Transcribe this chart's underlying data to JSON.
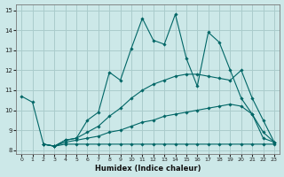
{
  "xlabel": "Humidex (Indice chaleur)",
  "bg_color": "#cce8e8",
  "grid_color": "#aacccc",
  "line_color": "#006666",
  "xlim": [
    -0.5,
    23.5
  ],
  "ylim": [
    7.8,
    15.3
  ],
  "yticks": [
    8,
    9,
    10,
    11,
    12,
    13,
    14,
    15
  ],
  "xticks": [
    0,
    1,
    2,
    3,
    4,
    5,
    6,
    7,
    8,
    9,
    10,
    11,
    12,
    13,
    14,
    15,
    16,
    17,
    18,
    19,
    20,
    21,
    22,
    23
  ],
  "lines": [
    {
      "x": [
        0,
        1,
        2,
        3,
        4,
        5,
        6,
        7,
        8,
        9,
        10,
        11,
        12,
        13,
        14,
        15,
        16,
        17,
        18,
        19,
        20,
        21,
        22,
        23
      ],
      "y": [
        10.7,
        10.4,
        8.3,
        8.2,
        8.5,
        8.6,
        9.5,
        9.9,
        11.9,
        11.5,
        13.1,
        14.6,
        13.5,
        13.3,
        14.8,
        12.6,
        11.2,
        13.9,
        13.4,
        12.0,
        10.6,
        9.8,
        8.6,
        8.4
      ]
    },
    {
      "x": [
        2,
        3,
        4,
        5,
        6,
        7,
        8,
        9,
        10,
        11,
        12,
        13,
        14,
        15,
        16,
        17,
        18,
        19,
        20,
        21,
        22,
        23
      ],
      "y": [
        8.3,
        8.2,
        8.5,
        8.6,
        8.9,
        9.2,
        9.7,
        10.1,
        10.6,
        11.0,
        11.3,
        11.5,
        11.7,
        11.8,
        11.8,
        11.7,
        11.6,
        11.5,
        12.0,
        10.6,
        9.5,
        8.4
      ]
    },
    {
      "x": [
        2,
        3,
        4,
        5,
        6,
        7,
        8,
        9,
        10,
        11,
        12,
        13,
        14,
        15,
        16,
        17,
        18,
        19,
        20,
        21,
        22,
        23
      ],
      "y": [
        8.3,
        8.2,
        8.4,
        8.5,
        8.6,
        8.7,
        8.9,
        9.0,
        9.2,
        9.4,
        9.5,
        9.7,
        9.8,
        9.9,
        10.0,
        10.1,
        10.2,
        10.3,
        10.2,
        9.8,
        8.9,
        8.4
      ]
    },
    {
      "x": [
        2,
        3,
        4,
        5,
        6,
        7,
        8,
        9,
        10,
        11,
        12,
        13,
        14,
        15,
        16,
        17,
        18,
        19,
        20,
        21,
        22,
        23
      ],
      "y": [
        8.3,
        8.2,
        8.3,
        8.3,
        8.3,
        8.3,
        8.3,
        8.3,
        8.3,
        8.3,
        8.3,
        8.3,
        8.3,
        8.3,
        8.3,
        8.3,
        8.3,
        8.3,
        8.3,
        8.3,
        8.3,
        8.3
      ]
    }
  ]
}
